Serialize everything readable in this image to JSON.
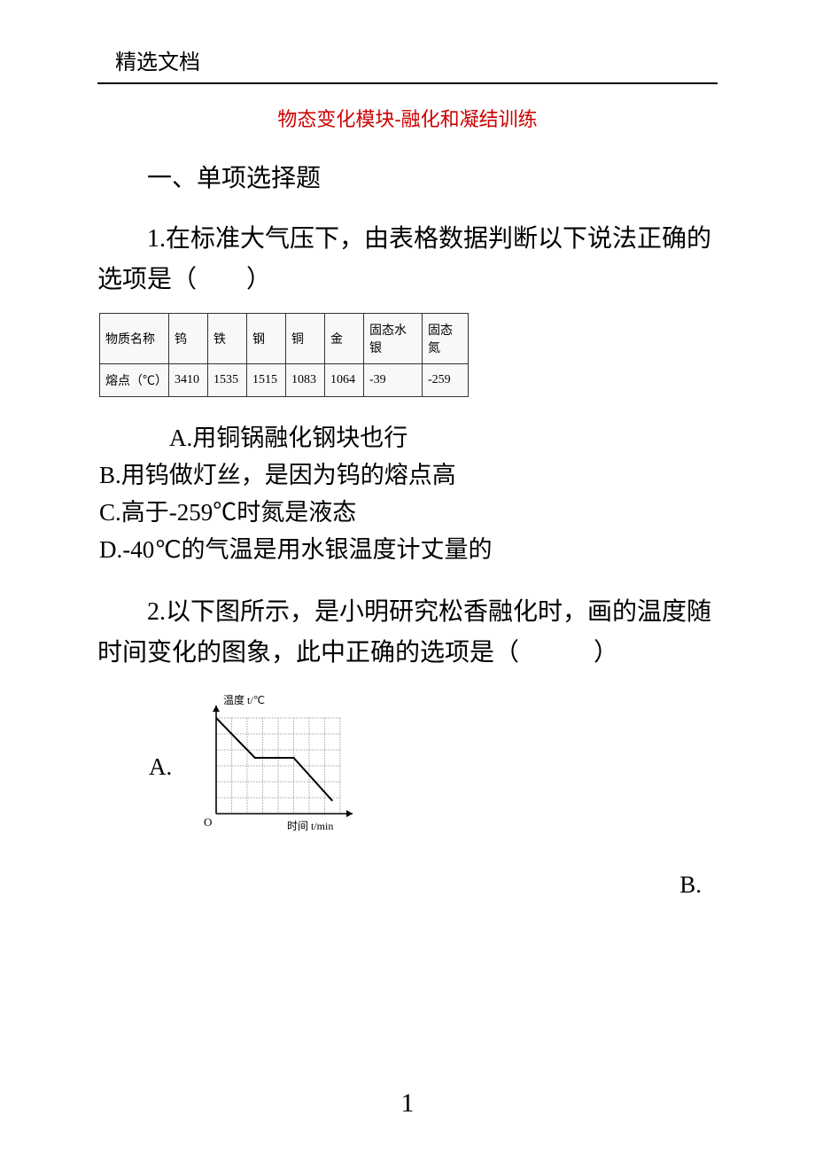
{
  "header": {
    "label": "精选文档"
  },
  "title": "物态变化模块-融化和凝结训练",
  "section_heading": "一、单项选择题",
  "q1": {
    "text": "1.在标准大气压下，由表格数据判断以下说法正确的选项是（　　）",
    "table": {
      "columns": [
        "物质名称",
        "钨",
        "铁",
        "钢",
        "铜",
        "金",
        "固态水银",
        "固态氮"
      ],
      "rows": [
        [
          "熔点（℃）",
          "3410",
          "1535",
          "1515",
          "1083",
          "1064",
          "-39",
          "-259"
        ]
      ],
      "border_color": "#333333",
      "cell_bg": "#f8f8f8",
      "font_size": 14
    },
    "choices": {
      "A": "A.用铜锅融化钢块也行",
      "B": "B.用钨做灯丝，是因为钨的熔点高",
      "C": "C.高于-259℃时氮是液态",
      "D": "D.-40℃的气温是用水银温度计丈量的"
    }
  },
  "q2": {
    "text": "2.以下图所示，是小明研究松香融化时，画的温度随时间变化的图象，此中正确的选项是（　　　）",
    "labels": {
      "A": "A.",
      "B": "B."
    },
    "graph": {
      "type": "line",
      "y_label": "温度 t/℃",
      "x_label": "时间 t/min",
      "origin": "O",
      "width": 170,
      "height": 150,
      "grid_cols": 8,
      "grid_rows": 6,
      "grid_color": "#888888",
      "axis_color": "#000000",
      "line_color": "#000000",
      "line_width": 2,
      "points": [
        [
          0,
          6
        ],
        [
          2.5,
          3.5
        ],
        [
          5,
          3.5
        ],
        [
          7.5,
          0.8
        ]
      ],
      "font_size": 12,
      "font_family": "SimSun"
    }
  },
  "page_number": "1",
  "colors": {
    "title": "#cc0000",
    "text": "#000000",
    "background": "#ffffff"
  }
}
